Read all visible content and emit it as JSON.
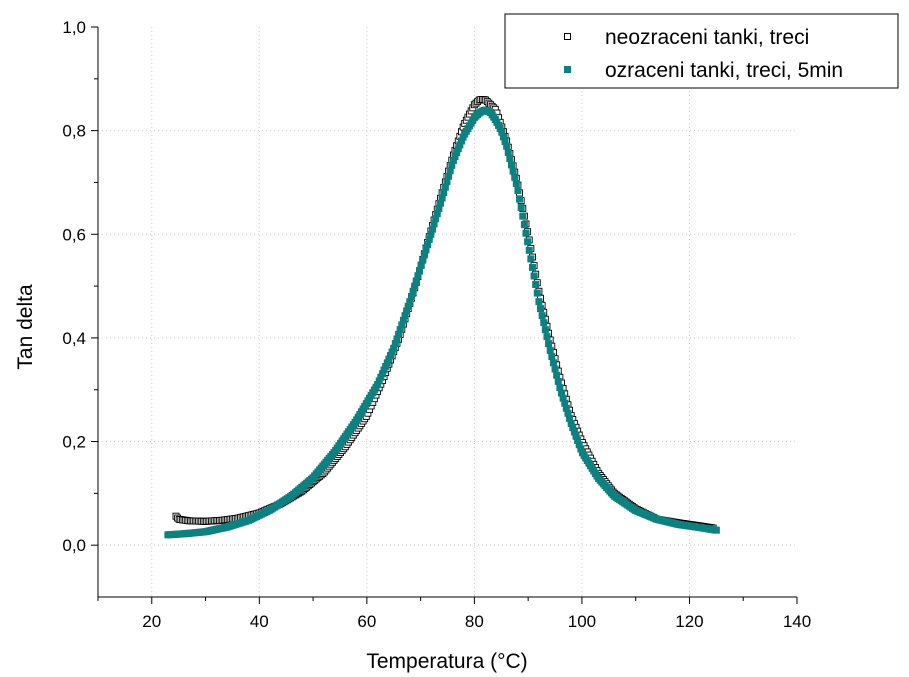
{
  "chart_data": {
    "type": "scatter",
    "title": "",
    "xlabel": "Temperatura (°C)",
    "ylabel": "Tan delta",
    "xlim": [
      10,
      140
    ],
    "ylim": [
      -0.1,
      1.0
    ],
    "x_ticks": [
      20,
      40,
      60,
      80,
      100,
      120,
      140
    ],
    "x_tick_labels": [
      "20",
      "40",
      "60",
      "80",
      "100",
      "120",
      "140"
    ],
    "y_ticks": [
      0.0,
      0.2,
      0.4,
      0.6,
      0.8,
      1.0
    ],
    "y_tick_labels": [
      "0,0",
      "0,2",
      "0,4",
      "0,6",
      "0,8",
      "1,0"
    ],
    "grid": true,
    "legend_position": "top-right",
    "series": [
      {
        "name": "neozraceni tanki, treci",
        "marker": "hollow-square",
        "color": "#000000",
        "x": [
          24.5,
          25,
          27,
          30,
          33,
          36,
          40,
          44,
          48,
          52,
          56,
          60,
          63,
          66,
          69,
          72,
          74,
          76,
          78,
          80,
          81,
          82,
          83,
          84,
          85,
          86,
          88,
          90,
          92,
          94,
          96,
          98,
          100,
          103,
          106,
          110,
          114,
          118,
          122,
          124.5
        ],
        "y": [
          0.056,
          0.05,
          0.047,
          0.046,
          0.048,
          0.052,
          0.062,
          0.08,
          0.105,
          0.14,
          0.19,
          0.25,
          0.32,
          0.4,
          0.5,
          0.61,
          0.68,
          0.75,
          0.81,
          0.85,
          0.86,
          0.86,
          0.85,
          0.84,
          0.81,
          0.78,
          0.7,
          0.6,
          0.49,
          0.4,
          0.32,
          0.25,
          0.2,
          0.14,
          0.1,
          0.07,
          0.05,
          0.043,
          0.037,
          0.033
        ]
      },
      {
        "name": "ozraceni tanki, treci, 5min",
        "marker": "filled-square",
        "color": "#0e8080",
        "x": [
          23,
          26,
          30,
          34,
          38,
          42,
          46,
          50,
          54,
          58,
          62,
          65,
          68,
          71,
          74,
          76,
          78,
          80,
          81,
          82,
          83,
          84,
          85,
          86,
          88,
          90,
          92,
          94,
          96,
          98,
          100,
          103,
          106,
          110,
          114,
          118,
          122,
          125
        ],
        "y": [
          0.02,
          0.022,
          0.026,
          0.035,
          0.048,
          0.068,
          0.095,
          0.13,
          0.18,
          0.24,
          0.31,
          0.38,
          0.47,
          0.57,
          0.67,
          0.74,
          0.79,
          0.825,
          0.835,
          0.84,
          0.835,
          0.82,
          0.8,
          0.77,
          0.69,
          0.58,
          0.47,
          0.38,
          0.3,
          0.235,
          0.18,
          0.13,
          0.095,
          0.067,
          0.05,
          0.04,
          0.034,
          0.029
        ]
      }
    ]
  }
}
